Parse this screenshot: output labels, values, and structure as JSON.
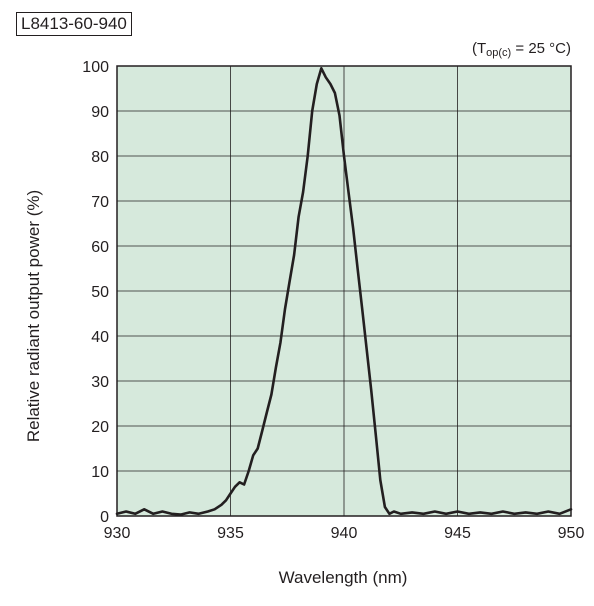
{
  "model_label": "L8413-60-940",
  "condition": {
    "prefix": "(T",
    "subscript": "op(c)",
    "suffix": " = 25 °C)"
  },
  "chart_data": {
    "type": "line",
    "xlabel": "Wavelength (nm)",
    "ylabel": "Relative radiant output power (%)",
    "xlim": [
      930,
      950
    ],
    "ylim": [
      0,
      100
    ],
    "xticks": [
      930,
      935,
      940,
      945,
      950
    ],
    "yticks": [
      0,
      10,
      20,
      30,
      40,
      50,
      60,
      70,
      80,
      90,
      100
    ],
    "grid": true,
    "plot_background": "#d6e9dc",
    "line_color": "#231f20",
    "series": [
      {
        "x": [
          930.0,
          930.4,
          930.8,
          931.2,
          931.6,
          932.0,
          932.4,
          932.8,
          933.2,
          933.6,
          934.0,
          934.3,
          934.6,
          934.8,
          935.0,
          935.2,
          935.4,
          935.6,
          935.8,
          936.0,
          936.2,
          936.4,
          936.6,
          936.8,
          937.0,
          937.2,
          937.4,
          937.6,
          937.8,
          938.0,
          938.2,
          938.4,
          938.6,
          938.8,
          939.0,
          939.2,
          939.4,
          939.6,
          939.8,
          940.0,
          940.2,
          940.4,
          940.6,
          940.8,
          941.0,
          941.2,
          941.4,
          941.6,
          941.8,
          942.0,
          942.2,
          942.5,
          943.0,
          943.5,
          944.0,
          944.5,
          945.0,
          945.5,
          946.0,
          946.5,
          947.0,
          947.5,
          948.0,
          948.5,
          949.0,
          949.5,
          950.0
        ],
        "y": [
          0.5,
          1.0,
          0.5,
          1.5,
          0.5,
          1.0,
          0.5,
          0.3,
          0.8,
          0.5,
          1.0,
          1.5,
          2.5,
          3.5,
          5.0,
          6.5,
          7.5,
          7.0,
          10.0,
          13.5,
          15.0,
          19.0,
          23.0,
          27.0,
          33.0,
          38.5,
          46.0,
          52.0,
          58.0,
          66.5,
          72.0,
          80.0,
          90.0,
          96.0,
          99.5,
          97.5,
          96.0,
          94.0,
          89.0,
          80.0,
          72.0,
          64.0,
          55.0,
          46.0,
          37.0,
          28.0,
          18.0,
          8.0,
          2.0,
          0.5,
          1.0,
          0.5,
          0.8,
          0.5,
          1.0,
          0.5,
          1.0,
          0.5,
          0.8,
          0.5,
          1.0,
          0.5,
          0.8,
          0.5,
          1.0,
          0.5,
          1.5
        ]
      }
    ]
  }
}
